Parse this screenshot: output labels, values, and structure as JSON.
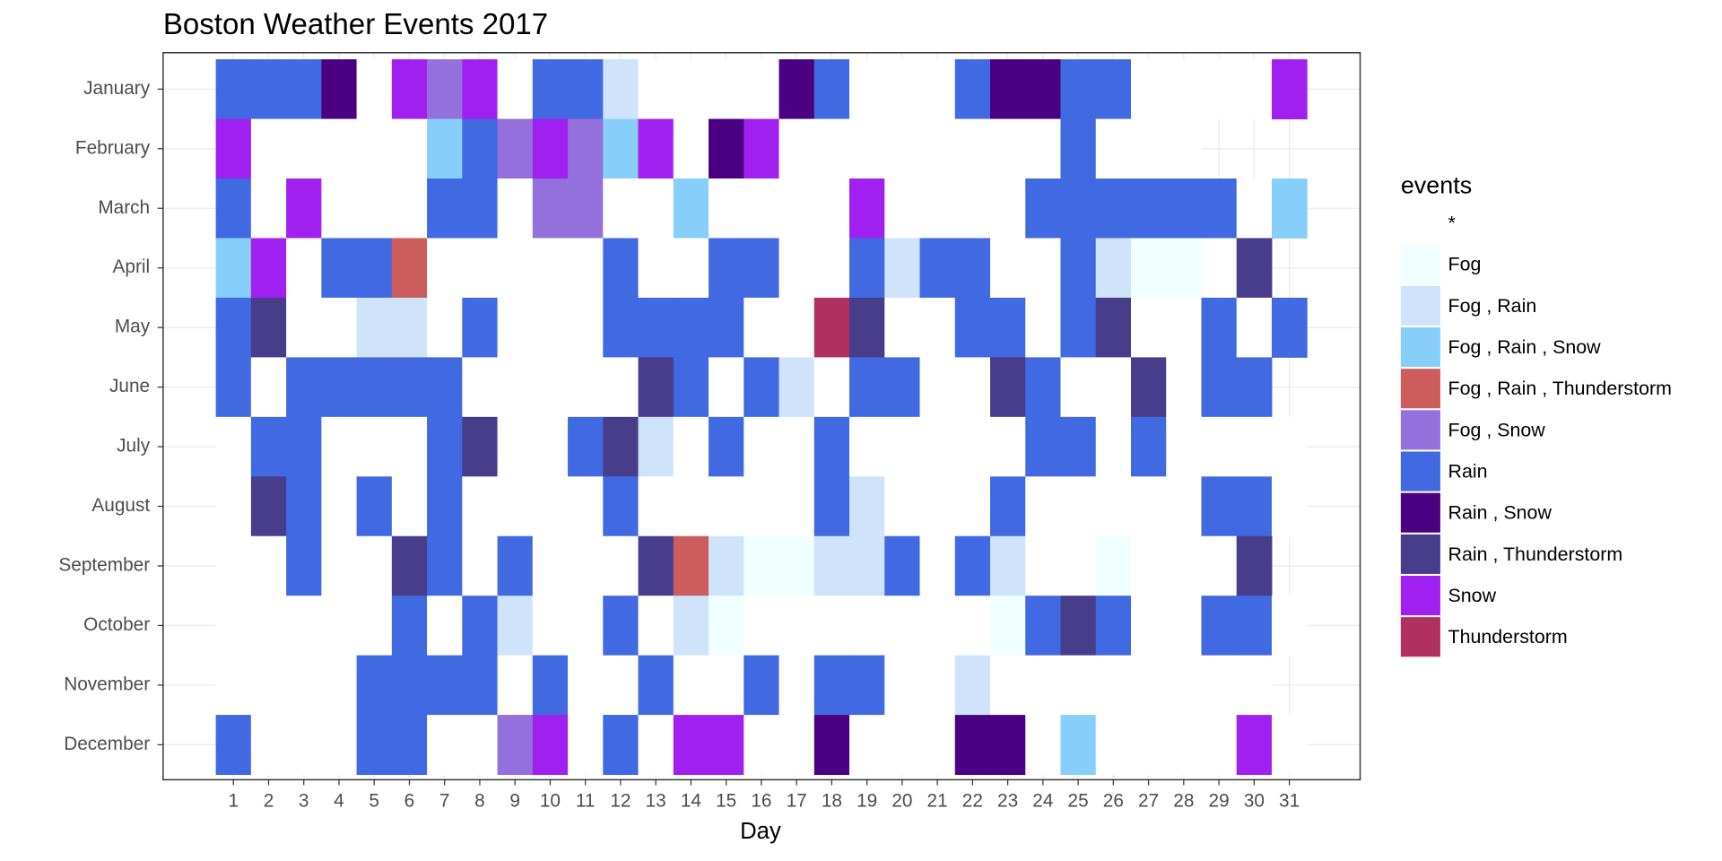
{
  "chart_data": {
    "type": "heatmap",
    "title": "Boston Weather Events 2017",
    "x_label": "Day",
    "legend_title": "events",
    "categories": [
      1,
      2,
      3,
      4,
      5,
      6,
      7,
      8,
      9,
      10,
      11,
      12,
      13,
      14,
      15,
      16,
      17,
      18,
      19,
      20,
      21,
      22,
      23,
      24,
      25,
      26,
      27,
      28,
      29,
      30,
      31
    ],
    "legend": [
      {
        "name": "*",
        "color": "#ffffff"
      },
      {
        "name": "Fog",
        "color": "#f0ffff"
      },
      {
        "name": "Fog , Rain",
        "color": "#cfe3fb"
      },
      {
        "name": "Fog , Rain , Snow",
        "color": "#87cefa"
      },
      {
        "name": "Fog , Rain , Thunderstorm",
        "color": "#cd5c5c"
      },
      {
        "name": "Fog , Snow",
        "color": "#9370db"
      },
      {
        "name": "Rain",
        "color": "#4169e1"
      },
      {
        "name": "Rain , Snow",
        "color": "#4b0082"
      },
      {
        "name": "Rain , Thunderstorm",
        "color": "#483d8b"
      },
      {
        "name": "Snow",
        "color": "#a020f0"
      },
      {
        "name": "Thunderstorm",
        "color": "#b03060"
      }
    ],
    "series": [
      {
        "name": "January",
        "values": [
          "Rain",
          "Rain",
          "Rain",
          "Rain , Snow",
          "*",
          "Snow",
          "Fog , Snow",
          "Snow",
          "*",
          "Rain",
          "Rain",
          "Fog , Rain",
          "*",
          "*",
          "*",
          "*",
          "Rain , Snow",
          "Rain",
          "*",
          "*",
          "*",
          "Rain",
          "Rain , Snow",
          "Rain , Snow",
          "Rain",
          "Rain",
          "*",
          "*",
          "*",
          "*",
          "Snow"
        ]
      },
      {
        "name": "February",
        "values": [
          "Snow",
          "*",
          "*",
          "*",
          "*",
          "*",
          "Fog , Rain , Snow",
          "Rain",
          "Fog , Snow",
          "Snow",
          "Fog , Snow",
          "Fog , Rain , Snow",
          "Snow",
          "*",
          "Rain , Snow",
          "Snow",
          "*",
          "*",
          "*",
          "*",
          "*",
          "*",
          "*",
          "*",
          "Rain",
          "*",
          "*",
          "*",
          null,
          null,
          null
        ]
      },
      {
        "name": "March",
        "values": [
          "Rain",
          "*",
          "Snow",
          "*",
          "*",
          "*",
          "Rain",
          "Rain",
          "*",
          "Fog , Snow",
          "Fog , Snow",
          "*",
          "*",
          "Fog , Rain , Snow",
          "*",
          "*",
          "*",
          "*",
          "Snow",
          "*",
          "*",
          "*",
          "*",
          "Rain",
          "Rain",
          "Rain",
          "Rain",
          "Rain",
          "Rain",
          "*",
          "Fog , Rain , Snow"
        ]
      },
      {
        "name": "April",
        "values": [
          "Fog , Rain , Snow",
          "Snow",
          "*",
          "Rain",
          "Rain",
          "Fog , Rain , Thunderstorm",
          "*",
          "*",
          "*",
          "*",
          "*",
          "Rain",
          "*",
          "*",
          "Rain",
          "Rain",
          "*",
          "*",
          "Rain",
          "Fog , Rain",
          "Rain",
          "Rain",
          "*",
          "*",
          "Rain",
          "Fog , Rain",
          "Fog",
          "Fog",
          "*",
          "Rain , Thunderstorm",
          null
        ]
      },
      {
        "name": "May",
        "values": [
          "Rain",
          "Rain , Thunderstorm",
          "*",
          "*",
          "Fog , Rain",
          "Fog , Rain",
          "*",
          "Rain",
          "*",
          "*",
          "*",
          "Rain",
          "Rain",
          "Rain",
          "Rain",
          "*",
          "*",
          "Thunderstorm",
          "Rain , Thunderstorm",
          "*",
          "*",
          "Rain",
          "Rain",
          "*",
          "Rain",
          "Rain , Thunderstorm",
          "*",
          "*",
          "Rain",
          "*",
          "Rain"
        ]
      },
      {
        "name": "June",
        "values": [
          "Rain",
          "*",
          "Rain",
          "Rain",
          "Rain",
          "Rain",
          "Rain",
          "*",
          "*",
          "*",
          "*",
          "*",
          "Rain , Thunderstorm",
          "Rain",
          "*",
          "Rain",
          "Fog , Rain",
          "*",
          "Rain",
          "Rain",
          "*",
          "*",
          "Rain , Thunderstorm",
          "Rain",
          "*",
          "*",
          "Rain , Thunderstorm",
          "*",
          "Rain",
          "Rain",
          null
        ]
      },
      {
        "name": "July",
        "values": [
          "*",
          "Rain",
          "Rain",
          "*",
          "*",
          "*",
          "Rain",
          "Rain , Thunderstorm",
          "*",
          "*",
          "Rain",
          "Rain , Thunderstorm",
          "Fog , Rain",
          "*",
          "Rain",
          "*",
          "*",
          "Rain",
          "*",
          "*",
          "*",
          "*",
          "*",
          "Rain",
          "Rain",
          "*",
          "Rain",
          "*",
          "*",
          "*",
          "*"
        ]
      },
      {
        "name": "August",
        "values": [
          "*",
          "Rain , Thunderstorm",
          "Rain",
          "*",
          "Rain",
          "*",
          "Rain",
          "*",
          "*",
          "*",
          "*",
          "Rain",
          "*",
          "*",
          "*",
          "*",
          "*",
          "Rain",
          "Fog , Rain",
          "*",
          "*",
          "*",
          "Rain",
          "*",
          "*",
          "*",
          "*",
          "*",
          "Rain",
          "Rain",
          "*"
        ]
      },
      {
        "name": "September",
        "values": [
          "*",
          "*",
          "Rain",
          "*",
          "*",
          "Rain , Thunderstorm",
          "Rain",
          "*",
          "Rain",
          "*",
          "*",
          "*",
          "Rain , Thunderstorm",
          "Fog , Rain , Thunderstorm",
          "Fog , Rain",
          "Fog",
          "Fog",
          "Fog , Rain",
          "Fog , Rain",
          "Rain",
          "*",
          "Rain",
          "Fog , Rain",
          "*",
          "*",
          "Fog",
          "*",
          "*",
          "*",
          "Rain , Thunderstorm",
          null
        ]
      },
      {
        "name": "October",
        "values": [
          "*",
          "*",
          "*",
          "*",
          "*",
          "Rain",
          "*",
          "Rain",
          "Fog , Rain",
          "*",
          "*",
          "Rain",
          "*",
          "Fog , Rain",
          "Fog",
          "*",
          "*",
          "*",
          "*",
          "*",
          "*",
          "*",
          "Fog",
          "Rain",
          "Rain , Thunderstorm",
          "Rain",
          "*",
          "*",
          "Rain",
          "Rain",
          "*"
        ]
      },
      {
        "name": "November",
        "values": [
          "*",
          "*",
          "*",
          "*",
          "Rain",
          "Rain",
          "Rain",
          "Rain",
          "*",
          "Rain",
          "*",
          "*",
          "Rain",
          "*",
          "*",
          "Rain",
          "*",
          "Rain",
          "Rain",
          "*",
          "*",
          "Fog , Rain",
          "*",
          "*",
          "*",
          "*",
          "*",
          "*",
          "*",
          "*",
          null
        ]
      },
      {
        "name": "December",
        "values": [
          "Rain",
          "*",
          "*",
          "*",
          "Rain",
          "Rain",
          "*",
          "*",
          "Fog , Snow",
          "Snow",
          "*",
          "Rain",
          "*",
          "Snow",
          "Snow",
          "*",
          "*",
          "Rain , Snow",
          "*",
          "*",
          "*",
          "Rain , Snow",
          "Rain , Snow",
          "*",
          "Fog , Rain , Snow",
          "*",
          "*",
          "*",
          "*",
          "Snow",
          "*"
        ]
      }
    ]
  }
}
